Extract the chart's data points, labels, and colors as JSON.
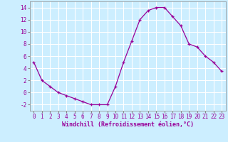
{
  "x": [
    0,
    1,
    2,
    3,
    4,
    5,
    6,
    7,
    8,
    9,
    10,
    11,
    12,
    13,
    14,
    15,
    16,
    17,
    18,
    19,
    20,
    21,
    22,
    23
  ],
  "y": [
    5,
    2,
    1,
    0,
    -0.5,
    -1,
    -1.5,
    -2,
    -2,
    -2,
    1,
    5,
    8.5,
    12,
    13.5,
    14,
    14,
    12.5,
    11,
    8,
    7.5,
    6,
    5,
    3.5
  ],
  "line_color": "#990099",
  "marker": "+",
  "marker_size": 3,
  "xlabel": "Windchill (Refroidissement éolien,°C)",
  "xlabel_fontsize": 6,
  "xlabel_color": "#990099",
  "ytick_vals": [
    -2,
    0,
    2,
    4,
    6,
    8,
    10,
    12,
    14
  ],
  "xtick_labels": [
    "0",
    "1",
    "2",
    "3",
    "4",
    "5",
    "6",
    "7",
    "8",
    "9",
    "10",
    "11",
    "12",
    "13",
    "14",
    "15",
    "16",
    "17",
    "18",
    "19",
    "20",
    "21",
    "22",
    "23"
  ],
  "ylim": [
    -3,
    15
  ],
  "xlim": [
    -0.5,
    23.5
  ],
  "bg_color": "#cceeff",
  "grid_color": "#aaddcc",
  "tick_fontsize": 5.5,
  "tick_color": "#990099"
}
